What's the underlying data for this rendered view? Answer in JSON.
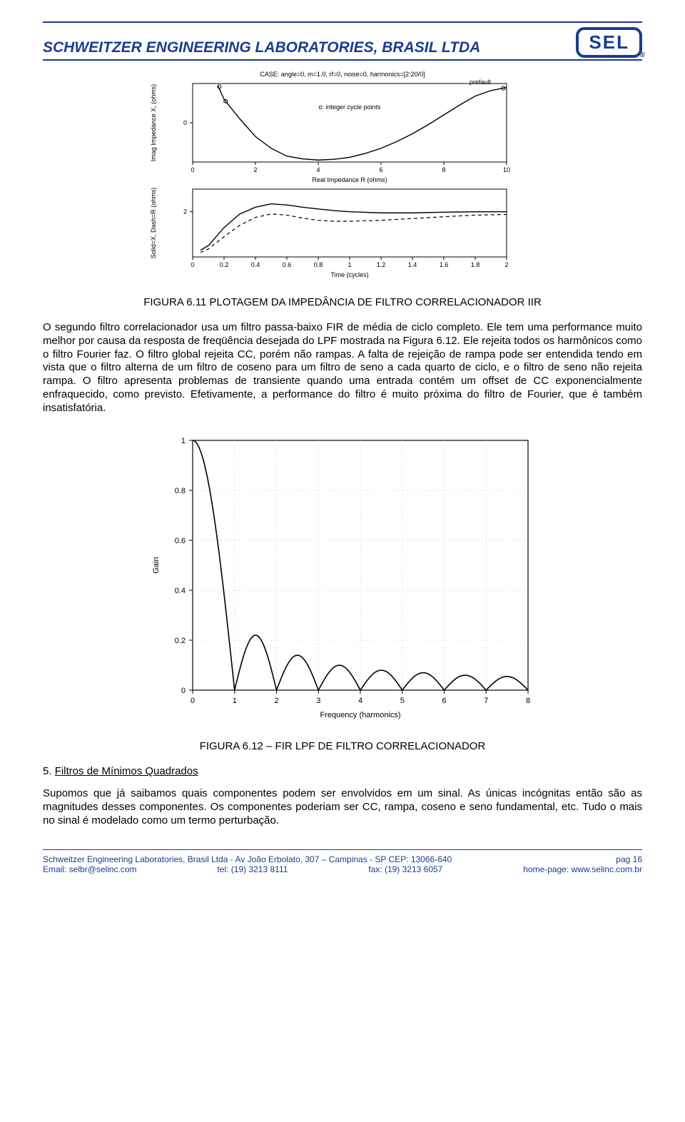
{
  "header": {
    "title": "SCHWEITZER ENGINEERING LABORATORIES, BRASIL LTDA",
    "logo_text": "SEL",
    "brand_color": "#1a3d8f"
  },
  "figure_top": {
    "case_label": "CASE: angle=0, m=1.0, rf=0, noise=0, harmonics=[2:20/0]",
    "panel1": {
      "type": "line",
      "xlabel": "Real Impedance R (ohms)",
      "ylabel": "Imag Impedance X, (ohms)",
      "marker_note": "o: integer cycle points",
      "prefault_label": "prefault",
      "xlim": [
        0,
        10
      ],
      "xticks": [
        0,
        2,
        4,
        6,
        8,
        10
      ],
      "ylim": [
        -1,
        1
      ],
      "yticks": [
        0
      ],
      "curve_x": [
        0.8,
        1.0,
        1.5,
        2.0,
        2.5,
        3.0,
        3.5,
        4.0,
        4.5,
        5.0,
        5.5,
        6.0,
        6.5,
        7.0,
        7.5,
        8.0,
        8.5,
        9.0,
        9.5,
        10.0
      ],
      "curve_y": [
        0.95,
        0.6,
        0.1,
        -0.35,
        -0.65,
        -0.85,
        -0.92,
        -0.95,
        -0.93,
        -0.88,
        -0.78,
        -0.65,
        -0.48,
        -0.28,
        -0.05,
        0.2,
        0.45,
        0.68,
        0.82,
        0.9
      ],
      "marker_points": [
        [
          0.85,
          0.92
        ],
        [
          1.05,
          0.55
        ],
        [
          9.9,
          0.88
        ]
      ],
      "line_color": "#000000",
      "axis_color": "#000000",
      "fontsize": 9
    },
    "panel2": {
      "type": "line",
      "xlabel": "Time (cycles)",
      "ylabel": "Solid=X, Dash=R (ohms)",
      "xlim": [
        0,
        2
      ],
      "xticks": [
        0,
        0.2,
        0.4,
        0.6,
        0.8,
        1,
        1.2,
        1.4,
        1.6,
        1.8,
        2
      ],
      "ylim": [
        0,
        3
      ],
      "yticks": [
        2
      ],
      "solid_x": [
        0.05,
        0.1,
        0.2,
        0.3,
        0.4,
        0.5,
        0.6,
        0.7,
        0.8,
        0.9,
        1.0,
        1.2,
        1.4,
        1.6,
        1.8,
        2.0
      ],
      "solid_y": [
        0.3,
        0.5,
        1.3,
        1.9,
        2.2,
        2.35,
        2.3,
        2.2,
        2.12,
        2.05,
        2.0,
        1.95,
        1.95,
        1.98,
        2.0,
        2.0
      ],
      "dash_x": [
        0.05,
        0.1,
        0.2,
        0.3,
        0.4,
        0.5,
        0.6,
        0.7,
        0.8,
        0.9,
        1.0,
        1.2,
        1.4,
        1.6,
        1.8,
        2.0
      ],
      "dash_y": [
        0.2,
        0.35,
        0.9,
        1.4,
        1.75,
        1.9,
        1.85,
        1.72,
        1.62,
        1.58,
        1.58,
        1.62,
        1.7,
        1.78,
        1.85,
        1.88
      ],
      "line_color": "#000000",
      "fontsize": 9
    }
  },
  "caption_top": "FIGURA 6.11 PLOTAGEM DA IMPEDÂNCIA DE FILTRO CORRELACIONADOR IIR",
  "paragraph1": "O segundo filtro correlacionador usa um filtro passa-baixo FIR de média de ciclo completo. Ele tem uma performance muito melhor por causa da resposta de freqüência desejada do LPF mostrada na Figura 6.12. Ele rejeita todos os harmônicos como o filtro Fourier faz. O filtro global rejeita CC, porém não rampas. A falta de rejeição de rampa pode ser entendida tendo em vista que o filtro alterna de um filtro de coseno para um filtro de seno a cada quarto de ciclo, e o filtro de seno não rejeita rampa. O filtro apresenta problemas de transiente quando uma entrada contém um offset de CC exponencialmente enfraquecido, como previsto. Efetivamente, a performance do filtro é muito próxima do filtro de Fourier, que é também insatisfatória.",
  "figure_bottom": {
    "type": "line",
    "xlabel": "Frequency (harmonics)",
    "ylabel": "Gain",
    "xlim": [
      0,
      8
    ],
    "xticks": [
      0,
      1,
      2,
      3,
      4,
      5,
      6,
      7,
      8
    ],
    "ylim": [
      0,
      1
    ],
    "yticks": [
      0,
      0.2,
      0.4,
      0.6,
      0.8,
      1
    ],
    "lobe_zeros": [
      1,
      2,
      3,
      4,
      5,
      6,
      7,
      8
    ],
    "lobe_peak_heights": [
      0.22,
      0.14,
      0.1,
      0.08,
      0.07,
      0.06,
      0.055
    ],
    "line_color": "#000000",
    "axis_color": "#000000",
    "grid_color": "#cccccc",
    "fontsize": 11
  },
  "caption_bottom": "FIGURA 6.12 – FIR LPF DE FILTRO CORRELACIONADOR",
  "section_heading": {
    "num": "5.",
    "text": "Filtros de Mínimos Quadrados"
  },
  "paragraph2": "Supomos que já saibamos quais componentes podem ser envolvidos em um sinal. As únicas incógnitas então são as magnitudes desses componentes. Os componentes poderiam ser CC, rampa, coseno e seno fundamental, etc. Tudo o mais no sinal é modelado como um termo perturbação.",
  "footer": {
    "line1_left": "Schweitzer Engineering Laboratories, Brasil Ltda - Av João Erbolato, 307 – Campinas - SP    CEP: 13066-640",
    "line1_right": "pag 16",
    "email_label": "Email: selbr@selinc.com",
    "tel_label": "tel: (19) 3213 8111",
    "fax_label": "fax: (19) 3213 6057",
    "home_label": "home-page: www.selinc.com.br"
  }
}
